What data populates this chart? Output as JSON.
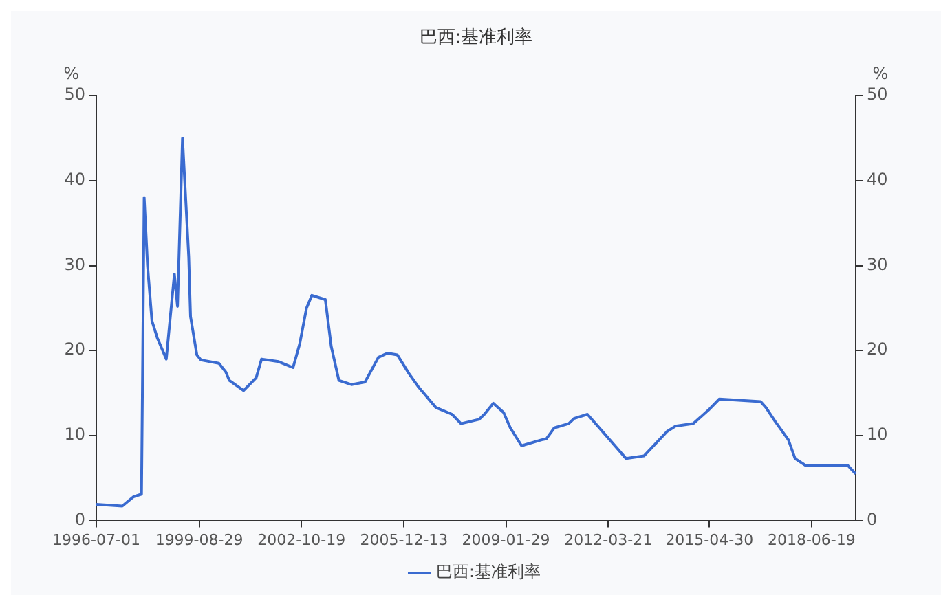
{
  "chart_data": {
    "type": "line",
    "title": "巴西:基准利率",
    "ylabel": "%",
    "y2label": "%",
    "x": [
      "1996-07-01",
      "1997-04-18",
      "1997-08-22",
      "1997-11-20",
      "1997-12-20",
      "1998-01-27",
      "1998-03-17",
      "1998-05-16",
      "1998-08-25",
      "1998-11-24",
      "1998-12-29",
      "1999-02-23",
      "1999-05-04",
      "1999-05-24",
      "1999-08-03",
      "1999-09-17",
      "2000-04-06",
      "2000-06-22",
      "2000-08-01",
      "2001-01-08",
      "2001-05-29",
      "2001-07-29",
      "2002-02-05",
      "2002-07-17",
      "2002-09-30",
      "2002-12-15",
      "2003-02-13",
      "2003-07-14",
      "2003-09-18",
      "2003-12-13",
      "2004-05-02",
      "2004-10-01",
      "2005-02-28",
      "2005-06-09",
      "2005-09-28",
      "2006-02-06",
      "2006-05-18",
      "2006-12-05",
      "2007-06-04",
      "2007-09-13",
      "2008-04-01",
      "2008-06-01",
      "2008-09-09",
      "2009-01-03",
      "2009-03-19",
      "2009-07-23",
      "2010-03-06",
      "2010-04-26",
      "2010-07-25",
      "2011-01-02",
      "2011-03-03",
      "2011-08-01",
      "2012-03-30",
      "2012-10-07",
      "2013-04-26",
      "2014-01-13",
      "2014-04-13",
      "2014-10-31",
      "2015-04-20",
      "2015-08-19",
      "2016-11-24",
      "2017-01-23",
      "2017-05-04",
      "2017-10-02",
      "2017-12-16",
      "2018-04-11",
      "2019-07-28",
      "2019-10-27"
    ],
    "series": [
      {
        "name": "巴西:基准利率",
        "color": "#3a6bd0",
        "values": [
          1.9,
          1.7,
          2.8,
          3.1,
          38.0,
          30.0,
          23.5,
          21.5,
          19.0,
          29.0,
          25.2,
          45.0,
          31.0,
          24.0,
          19.5,
          18.9,
          18.5,
          17.5,
          16.5,
          15.3,
          16.8,
          19.0,
          18.7,
          18.0,
          20.8,
          25.0,
          26.5,
          26.0,
          20.5,
          16.5,
          16.0,
          16.3,
          19.2,
          19.7,
          19.5,
          17.3,
          15.8,
          13.3,
          12.5,
          11.4,
          11.9,
          12.5,
          13.8,
          12.7,
          10.9,
          8.8,
          9.5,
          9.6,
          10.9,
          11.4,
          12.0,
          12.5,
          9.6,
          7.3,
          7.6,
          10.5,
          11.1,
          11.4,
          13.0,
          14.3,
          14.0,
          13.3,
          11.7,
          9.5,
          7.3,
          6.5,
          6.5,
          5.5
        ]
      }
    ],
    "xlim": [
      "1996-07-01",
      "2019-10-27"
    ],
    "xticks": [
      "1996-07-01",
      "1999-08-29",
      "2002-10-19",
      "2005-12-13",
      "2009-01-29",
      "2012-03-21",
      "2015-04-30",
      "2018-06-19"
    ],
    "ylim": [
      0,
      50
    ],
    "yticks": [
      0,
      10,
      20,
      30,
      40,
      50
    ],
    "y2lim": [
      0,
      50
    ],
    "y2ticks": [
      0,
      10,
      20,
      30,
      40,
      50
    ],
    "grid": false,
    "legend": "bottom",
    "marker": "none",
    "line_style": "solid"
  }
}
